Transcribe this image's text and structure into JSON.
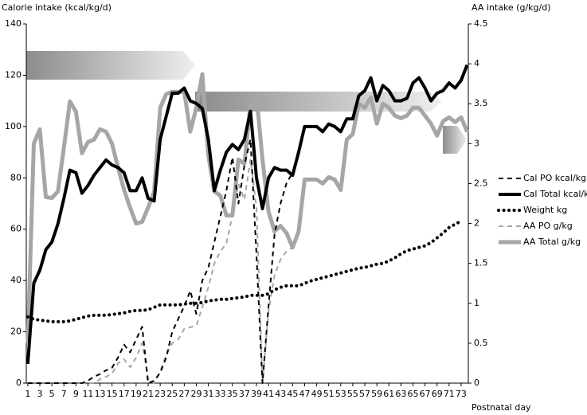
{
  "chart_data": {
    "type": "line",
    "y_label": "Calorie intake (kcal/kg/d)",
    "y2_label": "AA intake (g/kg/d)",
    "x_label": "Postnatal day",
    "x": [
      1,
      2,
      3,
      4,
      5,
      6,
      7,
      8,
      9,
      10,
      11,
      12,
      13,
      14,
      15,
      16,
      17,
      18,
      19,
      20,
      21,
      22,
      23,
      24,
      25,
      26,
      27,
      28,
      29,
      30,
      31,
      32,
      33,
      34,
      35,
      36,
      37,
      38,
      39,
      40,
      41,
      42,
      43,
      44,
      45,
      46,
      47,
      48,
      49,
      50,
      51,
      52,
      53,
      54,
      55,
      56,
      57,
      58,
      59,
      60,
      61,
      62,
      63,
      64,
      65,
      66,
      67,
      68,
      69,
      70,
      71,
      72,
      73,
      74
    ],
    "xlim": [
      0.75,
      74.2
    ],
    "xticks": [
      1,
      3,
      5,
      7,
      9,
      11,
      13,
      15,
      17,
      19,
      21,
      23,
      25,
      27,
      29,
      31,
      33,
      35,
      37,
      39,
      41,
      43,
      45,
      47,
      49,
      51,
      53,
      55,
      57,
      59,
      61,
      63,
      65,
      67,
      69,
      71,
      73
    ],
    "ylim": [
      0,
      140
    ],
    "yticks": [
      0,
      20,
      40,
      60,
      80,
      100,
      120,
      140
    ],
    "y2lim": [
      0,
      4.5
    ],
    "y2ticks": [
      0,
      0.5,
      1,
      1.5,
      2,
      2.5,
      3,
      3.5,
      4,
      4.5
    ],
    "legend": "right",
    "series": [
      {
        "name": "Cal PO kcal/kg",
        "color": "#000000",
        "line_style": "dashed",
        "width": 2,
        "axis": "y",
        "values": [
          0,
          0,
          0,
          0,
          0,
          0,
          0,
          0,
          0,
          0,
          1,
          2.5,
          3.5,
          5,
          6,
          10,
          15,
          12,
          17,
          22,
          0,
          1,
          4,
          10,
          20,
          25,
          30,
          36,
          27,
          40,
          45,
          55,
          65,
          75,
          88,
          70,
          85,
          95,
          50,
          0,
          30,
          58,
          70,
          78,
          82,
          null,
          null,
          null,
          null,
          null,
          null,
          null,
          null,
          null,
          null,
          null,
          null,
          null,
          null,
          null,
          null,
          null,
          null,
          null,
          null,
          null,
          null,
          null,
          null,
          null,
          null,
          null,
          null,
          null
        ]
      },
      {
        "name": "Cal Total kcal/kg",
        "color": "#000000",
        "line_style": "solid",
        "width": 4,
        "axis": "y",
        "values": [
          7.5,
          39,
          44,
          52,
          55,
          62,
          72,
          83,
          82,
          74,
          77,
          81,
          84,
          87,
          85,
          84,
          82,
          75,
          75,
          80,
          72,
          71,
          95,
          104,
          113,
          113,
          115,
          110,
          109,
          107,
          95,
          75,
          83,
          90,
          93,
          91,
          95,
          106,
          80,
          68,
          80,
          84,
          83,
          83,
          81,
          90,
          100,
          100,
          100,
          98,
          101,
          100,
          98,
          103,
          103,
          112,
          114,
          119,
          110,
          116,
          114,
          110,
          110,
          111,
          117,
          119,
          115,
          110,
          113,
          114,
          117,
          115,
          118,
          124
        ]
      },
      {
        "name": "Weight kg",
        "color": "#000000",
        "line_style": "dotted",
        "width": 4,
        "axis": "y2",
        "values": [
          0.83,
          0.8,
          0.79,
          0.78,
          0.77,
          0.77,
          0.77,
          0.78,
          0.8,
          0.82,
          0.84,
          0.85,
          0.85,
          0.85,
          0.86,
          0.87,
          0.88,
          0.9,
          0.91,
          0.91,
          0.92,
          0.95,
          0.98,
          0.98,
          0.98,
          0.98,
          0.99,
          1.0,
          1.0,
          1.01,
          1.03,
          1.04,
          1.05,
          1.05,
          1.06,
          1.07,
          1.08,
          1.1,
          1.1,
          1.1,
          1.12,
          1.17,
          1.2,
          1.22,
          1.22,
          1.22,
          1.25,
          1.28,
          1.3,
          1.32,
          1.34,
          1.36,
          1.38,
          1.4,
          1.42,
          1.44,
          1.45,
          1.47,
          1.49,
          1.5,
          1.53,
          1.57,
          1.62,
          1.66,
          1.68,
          1.7,
          1.72,
          1.76,
          1.82,
          1.88,
          1.95,
          1.99,
          2.03,
          null
        ]
      },
      {
        "name": "AA PO g/kg",
        "color": "#a6a6a6",
        "line_style": "dashed",
        "width": 2,
        "axis": "y2",
        "values": [
          0,
          0,
          0,
          0,
          0,
          0,
          0,
          0,
          0,
          0,
          0,
          0,
          0.05,
          0.08,
          0.12,
          0.25,
          0.3,
          0.2,
          0.32,
          0.5,
          0.05,
          0,
          0.15,
          0.35,
          0.5,
          0.55,
          0.68,
          0.7,
          0.72,
          0.95,
          1.2,
          1.5,
          1.65,
          1.75,
          2.1,
          2.5,
          2.3,
          2.8,
          2.2,
          0,
          0.9,
          1.35,
          1.55,
          1.65,
          1.7,
          null,
          null,
          null,
          null,
          null,
          null,
          null,
          null,
          null,
          null,
          null,
          null,
          null,
          null,
          null,
          null,
          null,
          null,
          null,
          null,
          null,
          null,
          null,
          null,
          null,
          null,
          null,
          null,
          null
        ]
      },
      {
        "name": "AA Total g/kg",
        "color": "#a6a6a6",
        "line_style": "solid",
        "width": 5,
        "axis": "y2",
        "values": [
          0.5,
          3.0,
          3.18,
          2.33,
          2.32,
          2.4,
          2.95,
          3.53,
          3.4,
          2.88,
          3.02,
          3.05,
          3.18,
          3.15,
          3.0,
          2.7,
          2.42,
          2.2,
          2.0,
          2.02,
          2.2,
          2.4,
          3.45,
          3.62,
          3.65,
          3.65,
          3.65,
          3.15,
          3.45,
          3.87,
          2.85,
          2.4,
          2.35,
          2.1,
          2.1,
          2.8,
          2.75,
          3.5,
          3.6,
          2.8,
          2.15,
          1.9,
          1.97,
          1.88,
          1.7,
          1.9,
          2.55,
          2.55,
          2.55,
          2.5,
          2.58,
          2.55,
          2.42,
          3.05,
          3.12,
          3.5,
          3.45,
          3.58,
          3.25,
          3.5,
          3.45,
          3.35,
          3.32,
          3.35,
          3.45,
          3.45,
          3.35,
          3.25,
          3.1,
          3.28,
          3.33,
          3.27,
          3.33,
          3.15
        ]
      }
    ]
  }
}
